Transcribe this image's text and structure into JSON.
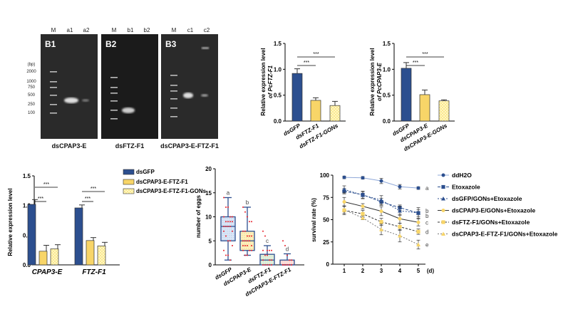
{
  "gels": [
    {
      "panel": "B1",
      "lanes": [
        "M",
        "a1",
        "a2"
      ],
      "caption": "dsCPAP3-E"
    },
    {
      "panel": "B2",
      "lanes": [
        "M",
        "b1",
        "b2"
      ],
      "caption": "dsFTZ-F1"
    },
    {
      "panel": "B3",
      "lanes": [
        "M",
        "c1",
        "c2"
      ],
      "caption": "dsCPAP3-E-FTZ-F1"
    }
  ],
  "ladder": {
    "unit": "(bp)",
    "sizes": [
      "2000",
      "1000",
      "750",
      "500",
      "250",
      "100"
    ]
  },
  "colors": {
    "blue": "#2c4f8f",
    "yellow": "#f8d568",
    "checker": "#fbe98f",
    "red": "#e8202a"
  },
  "chart_data": [
    {
      "type": "bar",
      "ylabel": "Relative expression level",
      "ylabel2": "of PcFTZ-F1",
      "categories": [
        "dsGFP",
        "dsFTZ-F1",
        "dsFTZ-F1-GONs"
      ],
      "values": [
        0.92,
        0.4,
        0.3
      ],
      "errors": [
        0.09,
        0.05,
        0.08
      ],
      "ylim": [
        0,
        1.5
      ],
      "yticks": [
        "0.0",
        "0.5",
        "1.0",
        "1.5"
      ],
      "significance": [
        "***",
        "***"
      ]
    },
    {
      "type": "bar",
      "ylabel": "Relative expression level",
      "ylabel2": "of PcCPAP3-E",
      "categories": [
        "dsGFP",
        "dsCPAP3-E",
        "dsCPAP3-E-GONs"
      ],
      "values": [
        1.02,
        0.51,
        0.39
      ],
      "errors": [
        0.11,
        0.09,
        0.02
      ],
      "ylim": [
        0,
        1.5
      ],
      "yticks": [
        "0.0",
        "0.5",
        "1.0",
        "1.5"
      ],
      "significance": [
        "***",
        "***"
      ]
    },
    {
      "type": "bar",
      "ylabel": "Relative expression level",
      "categories": [
        "CPAP3-E",
        "FTZ-F1"
      ],
      "series": [
        {
          "name": "dsGFP",
          "values": [
            1.02,
            0.96
          ],
          "errors": [
            0.08,
            0.05
          ]
        },
        {
          "name": "dsCPAP3-E-FTZ-F1",
          "values": [
            0.23,
            0.41
          ],
          "errors": [
            0.1,
            0.05
          ]
        },
        {
          "name": "dsCPAP3-E-FTZ-F1-GONs",
          "values": [
            0.27,
            0.32
          ],
          "errors": [
            0.07,
            0.06
          ]
        }
      ],
      "ylim": [
        0,
        1.5
      ],
      "yticks": [
        "0.0",
        "0.5",
        "1.0",
        "1.5"
      ],
      "significance": [
        "***",
        "***",
        "***",
        "***"
      ],
      "legend": "right"
    },
    {
      "type": "box",
      "ylabel": "number of eggs",
      "categories": [
        "dsGFP",
        "dsCPAP3-E",
        "dsFTZ-F1",
        "dsCPAP3-E-FTZ-F1"
      ],
      "boxes": [
        {
          "min": 1,
          "q1": 5,
          "median": 8,
          "q3": 10,
          "max": 14,
          "letter": "a"
        },
        {
          "min": 2,
          "q1": 3,
          "median": 5,
          "q3": 7,
          "max": 12,
          "letter": "b"
        },
        {
          "min": 0,
          "q1": 0,
          "median": 1,
          "q3": 2.2,
          "max": 4,
          "letter": "c"
        },
        {
          "min": 0,
          "q1": 0,
          "median": 0,
          "q3": 1,
          "max": 2.3,
          "letter": "d"
        }
      ],
      "points": [
        [
          14,
          12,
          12,
          10,
          10,
          10,
          9,
          9,
          9,
          9,
          8,
          8,
          8,
          8,
          7,
          7,
          6,
          5,
          5,
          4,
          3,
          2,
          2,
          1
        ],
        [
          12,
          11,
          10,
          9,
          9,
          7,
          7,
          6,
          6,
          6,
          5,
          5,
          5,
          5,
          4,
          4,
          4,
          4,
          3,
          3,
          3,
          2,
          2
        ],
        [
          7,
          6,
          3,
          3,
          3,
          3,
          2,
          2,
          1,
          1,
          1,
          0,
          0,
          0,
          0,
          0
        ],
        [
          5,
          4,
          2,
          1,
          1,
          0,
          0,
          0,
          0,
          0,
          0,
          0
        ]
      ],
      "ylim": [
        0,
        20
      ],
      "yticks": [
        "0",
        "5",
        "10",
        "15",
        "20"
      ]
    },
    {
      "type": "line",
      "ylabel": "survival rate (%)",
      "xunit": "(d)",
      "x": [
        1,
        2,
        3,
        4,
        5
      ],
      "xticks": [
        "1",
        "2",
        "3",
        "4",
        "5"
      ],
      "ylim": [
        0,
        100
      ],
      "yticks": [
        "0",
        "25",
        "50",
        "75",
        "100"
      ],
      "series": [
        {
          "name": "ddH2O",
          "values": [
            97.5,
            97,
            93.5,
            87,
            85.5
          ],
          "errors": [
            1.5,
            1.5,
            3,
            2.5,
            1.5
          ],
          "letter": "a",
          "color": "#2c4f8f",
          "marker": "circle",
          "dash": ""
        },
        {
          "name": "Etoxazole",
          "values": [
            82,
            78,
            70,
            63.5,
            57.5
          ],
          "errors": [
            3,
            4,
            4,
            3,
            4
          ],
          "letter": "b",
          "color": "#2c4f8f",
          "marker": "square",
          "dash": "4,2"
        },
        {
          "name": "dsGFP/GONs+Etoxazole",
          "values": [
            84,
            77.5,
            72,
            60,
            57.5
          ],
          "errors": [
            4,
            4,
            5,
            5,
            6
          ],
          "letter": "b",
          "color": "#2c4f8f",
          "marker": "triangle",
          "dash": "2,2"
        },
        {
          "name": "dsCPAP3-E/GONs+Etoxazole",
          "values": [
            70,
            65,
            59.5,
            51,
            47
          ],
          "errors": [
            5,
            3,
            5,
            5,
            4
          ],
          "letter": "c",
          "color": "#333333",
          "marker": "circle-y",
          "dash": ""
        },
        {
          "name": "dsFTZ-F1/GONs+Etoxazole",
          "values": [
            60.5,
            56.5,
            47.5,
            42,
            36.5
          ],
          "errors": [
            5,
            4,
            4,
            4,
            3
          ],
          "letter": "d",
          "color": "#333333",
          "marker": "square-y",
          "dash": "3,2"
        },
        {
          "name": "dsCPAP3-E-FTZ-F1/GONs+Etoxazole",
          "values": [
            61,
            52,
            39,
            32,
            22
          ],
          "errors": [
            4,
            2,
            6,
            7,
            5
          ],
          "letter": "e",
          "color": "#777777",
          "marker": "triangle-y",
          "dash": "2,2"
        }
      ],
      "legend": "right"
    }
  ]
}
